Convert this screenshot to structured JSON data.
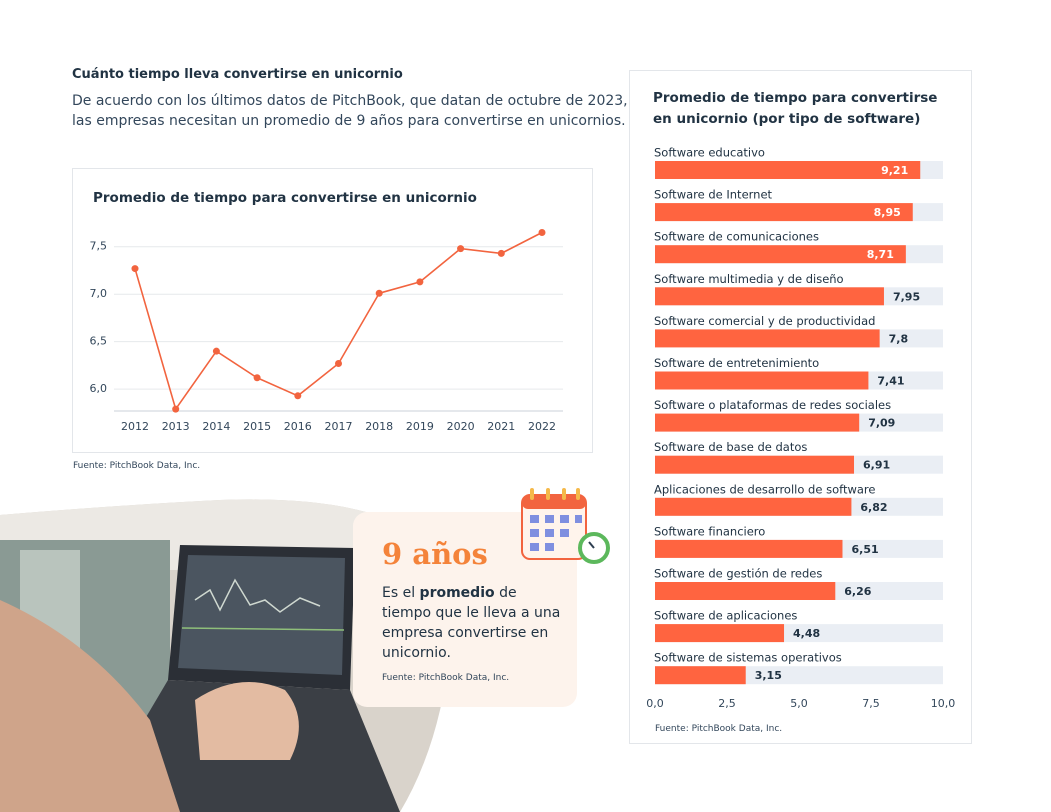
{
  "header": {
    "title": "Cuánto tiempo lleva convertirse en unicornio",
    "lines": [
      "De acuerdo con los últimos datos de PitchBook, que datan de octubre de 2023,",
      "las empresas necesitan un promedio de 9 años para convertirse en unicornios."
    ]
  },
  "chart_data": [
    {
      "type": "line",
      "title": "Promedio de tiempo para convertirse en unicornio",
      "color": "#f2643f",
      "categories": [
        "2012",
        "2013",
        "2014",
        "2015",
        "2016",
        "2017",
        "2018",
        "2019",
        "2020",
        "2021",
        "2022"
      ],
      "values": [
        7.27,
        5.79,
        6.4,
        6.12,
        5.93,
        6.27,
        7.01,
        7.13,
        7.48,
        7.43,
        7.65
      ],
      "ylim": [
        5.77,
        7.75
      ],
      "yticks": [
        {
          "value": 6.0,
          "label": "6,0"
        },
        {
          "value": 6.5,
          "label": "6,5"
        },
        {
          "value": 7.0,
          "label": "7,0"
        },
        {
          "value": 7.5,
          "label": "7,5"
        }
      ],
      "grid": true,
      "source": "Fuente: PitchBook Data, Inc."
    },
    {
      "type": "hbar",
      "title": "Promedio de tiempo para convertirse en unicornio (por tipo de software)",
      "color": "#ff6440",
      "categories": [
        "Software educativo",
        "Software de Internet",
        "Software de comunicaciones",
        "Software multimedia y de diseño",
        "Software comercial y de productividad",
        "Software de entretenimiento",
        "Software o plataformas de redes sociales",
        "Software de base de datos",
        "Aplicaciones de desarrollo de software",
        "Software financiero",
        "Software de gestión de redes",
        "Software de aplicaciones",
        "Software de sistemas operativos"
      ],
      "values": [
        9.21,
        8.95,
        8.71,
        7.95,
        7.8,
        7.41,
        7.09,
        6.91,
        6.82,
        6.51,
        6.26,
        4.48,
        3.15
      ],
      "value_labels": [
        "9,21",
        "8,95",
        "8,71",
        "7,95",
        "7,8",
        "7,41",
        "7,09",
        "6,91",
        "6,82",
        "6,51",
        "6,26",
        "4,48",
        "3,15"
      ],
      "xlim": [
        0,
        10
      ],
      "xticks": [
        {
          "value": 0,
          "label": "0,0"
        },
        {
          "value": 2.5,
          "label": "2,5"
        },
        {
          "value": 5,
          "label": "5,0"
        },
        {
          "value": 7.5,
          "label": "7,5"
        },
        {
          "value": 10,
          "label": "10,0"
        }
      ],
      "source": "Fuente: PitchBook Data, Inc."
    }
  ],
  "callout": {
    "headline": "9 años",
    "before": "Es el ",
    "bold": "promedio",
    "after": " de tiempo que le lleva a una empresa convertirse en unicornio.",
    "source": "Fuente: PitchBook Data, Inc."
  }
}
